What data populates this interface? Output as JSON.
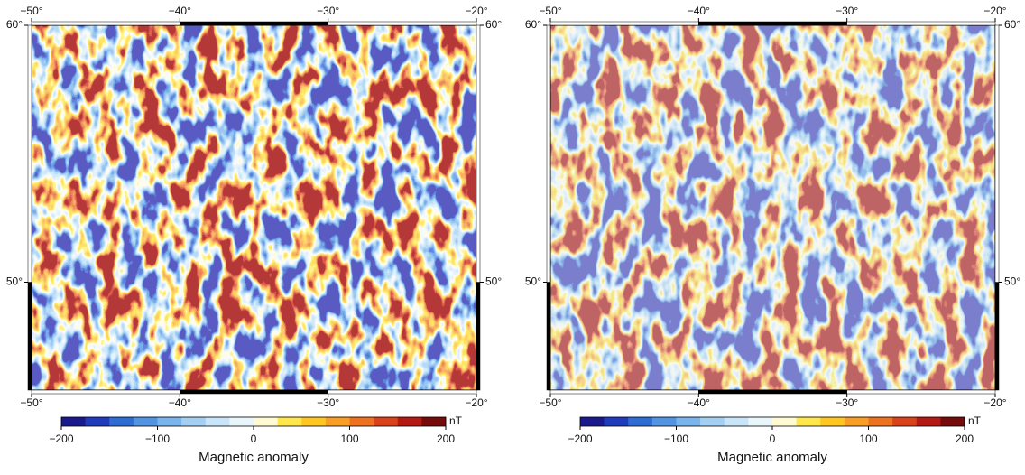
{
  "palette": [
    "#1a1a8c",
    "#1f3cbc",
    "#2f6dd5",
    "#5293e2",
    "#7ab4ec",
    "#a3cff3",
    "#c8e4f8",
    "#e8f5fb",
    "#fffad2",
    "#ffe64a",
    "#ffc520",
    "#f99e24",
    "#ee7120",
    "#d9421a",
    "#b41a12",
    "#760b0b"
  ],
  "panels": [
    {
      "map": {
        "xlim": [
          -50,
          -20
        ],
        "ylim": [
          45.8,
          60
        ],
        "xticks": [
          {
            "value": -50,
            "label": "−50°"
          },
          {
            "value": -40,
            "label": "−40°"
          },
          {
            "value": -30,
            "label": "−30°"
          },
          {
            "value": -20,
            "label": "−20°"
          }
        ],
        "yticks": [
          {
            "value": 50,
            "label": "50°"
          },
          {
            "value": 60,
            "label": "60°"
          }
        ]
      },
      "colorbar": {
        "lim": [
          -200,
          200
        ],
        "ticks": [
          {
            "value": -200,
            "label": "−200"
          },
          {
            "value": -100,
            "label": "−100"
          },
          0,
          100,
          200
        ],
        "unit": "nT",
        "label": "Magnetic anomaly"
      }
    },
    {
      "map": {
        "xlim": [
          -50,
          -20
        ],
        "ylim": [
          45.8,
          60
        ],
        "xticks": [
          {
            "value": -50,
            "label": "−50°"
          },
          {
            "value": -40,
            "label": "−40°"
          },
          {
            "value": -30,
            "label": "−30°"
          },
          {
            "value": -20,
            "label": "−20°"
          }
        ],
        "yticks": [
          {
            "value": 50,
            "label": "50°"
          },
          {
            "value": 60,
            "label": "60°"
          }
        ]
      },
      "colorbar": {
        "lim": [
          -200,
          200
        ],
        "ticks": [
          {
            "value": -200,
            "label": "−200"
          },
          {
            "value": -100,
            "label": "−100"
          },
          0,
          100,
          200
        ],
        "unit": "nT",
        "label": "Magnetic anomaly"
      }
    }
  ]
}
